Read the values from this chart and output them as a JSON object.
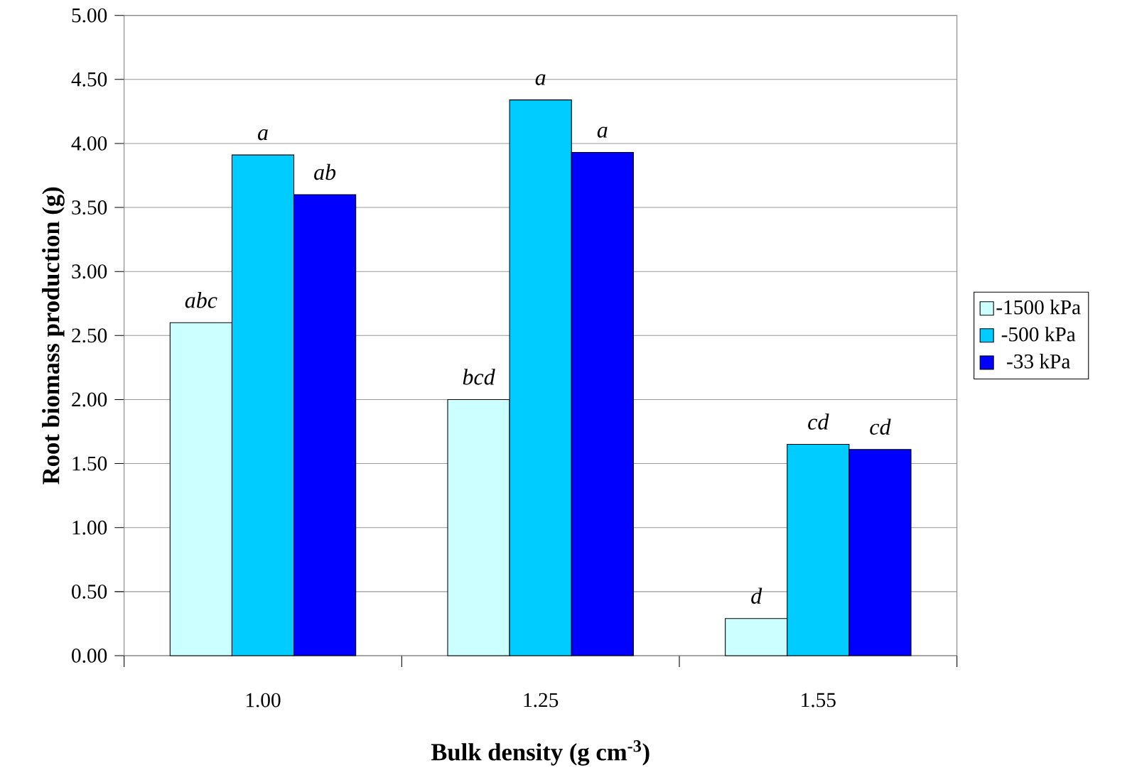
{
  "chart_data": {
    "type": "bar",
    "xlabel": "Bulk density (g cm$^{-3}$)",
    "ylabel": "Root biomass production (g)",
    "categories": [
      "1.00",
      "1.25",
      "1.55"
    ],
    "series": [
      {
        "name": "-1500 kPa",
        "color": "#ccffff",
        "values": [
          2.6,
          2.0,
          0.29
        ],
        "value_labels": [
          "abc",
          "bcd",
          "d"
        ]
      },
      {
        "name": "-500 kPa",
        "color": "#00ccff",
        "values": [
          3.91,
          4.34,
          1.65
        ],
        "value_labels": [
          "a",
          "a",
          "cd"
        ]
      },
      {
        "name": "-33 kPa",
        "color": "#0000ff",
        "values": [
          3.6,
          3.93,
          1.61
        ],
        "value_labels": [
          "ab",
          "a",
          "cd"
        ]
      }
    ],
    "ylim": [
      0,
      5
    ],
    "yticks": [
      {
        "value": 0,
        "label": "0.00"
      },
      {
        "value": 0.5,
        "label": "0.50"
      },
      {
        "value": 1,
        "label": "1.00"
      },
      {
        "value": 1.5,
        "label": "1.50"
      },
      {
        "value": 2,
        "label": "2.00"
      },
      {
        "value": 2.5,
        "label": "2.50"
      },
      {
        "value": 3,
        "label": "3.00"
      },
      {
        "value": 3.5,
        "label": "3.50"
      },
      {
        "value": 4,
        "label": "4.00"
      },
      {
        "value": 4.5,
        "label": "4.50"
      },
      {
        "value": 5,
        "label": "5.00"
      }
    ],
    "grid": "y",
    "legend": "right"
  }
}
